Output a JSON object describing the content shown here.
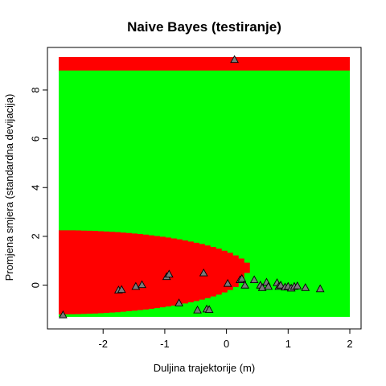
{
  "chart_data": {
    "type": "scatter",
    "title": "Naive Bayes (testiranje)",
    "xlabel": "Duljina trajektorije (m)",
    "ylabel": "Promjena smjera (standardna devijacija)",
    "xlim": [
      -2.72,
      2.0
    ],
    "ylim": [
      -1.3,
      9.35
    ],
    "xticks": [
      -2,
      -1,
      0,
      1,
      2
    ],
    "yticks": [
      0,
      2,
      4,
      6,
      8
    ],
    "background_regions": {
      "class_a_color": "#00ff00",
      "class_b_color": "#ff0000",
      "class_b_top_band_from_y": 8.8,
      "class_b_ellipse": {
        "center": [
          -2.72,
          0.5
        ],
        "rx": 3.1,
        "ry_upper": 1.75,
        "ry_lower": 1.7
      }
    },
    "points": [
      {
        "x": -2.65,
        "y": -1.22
      },
      {
        "x": -1.75,
        "y": -0.2
      },
      {
        "x": -1.7,
        "y": -0.18
      },
      {
        "x": -1.47,
        "y": -0.05
      },
      {
        "x": -1.37,
        "y": 0.02
      },
      {
        "x": -0.97,
        "y": 0.35
      },
      {
        "x": -0.93,
        "y": 0.45
      },
      {
        "x": -0.77,
        "y": -0.73
      },
      {
        "x": -0.47,
        "y": -1.02
      },
      {
        "x": -0.37,
        "y": 0.5
      },
      {
        "x": -0.32,
        "y": -0.98
      },
      {
        "x": -0.28,
        "y": -1.0
      },
      {
        "x": 0.02,
        "y": 0.07
      },
      {
        "x": 0.13,
        "y": 9.25
      },
      {
        "x": 0.22,
        "y": 0.22
      },
      {
        "x": 0.25,
        "y": 0.27
      },
      {
        "x": 0.3,
        "y": 0.0
      },
      {
        "x": 0.45,
        "y": 0.22
      },
      {
        "x": 0.55,
        "y": 0.0
      },
      {
        "x": 0.58,
        "y": -0.1
      },
      {
        "x": 0.65,
        "y": 0.12
      },
      {
        "x": 0.68,
        "y": -0.05
      },
      {
        "x": 0.82,
        "y": 0.1
      },
      {
        "x": 0.85,
        "y": -0.05
      },
      {
        "x": 0.88,
        "y": 0.0
      },
      {
        "x": 0.95,
        "y": -0.08
      },
      {
        "x": 1.0,
        "y": -0.05
      },
      {
        "x": 1.05,
        "y": -0.12
      },
      {
        "x": 1.1,
        "y": -0.05
      },
      {
        "x": 1.15,
        "y": -0.03
      },
      {
        "x": 1.28,
        "y": -0.1
      },
      {
        "x": 1.52,
        "y": -0.15
      }
    ]
  }
}
